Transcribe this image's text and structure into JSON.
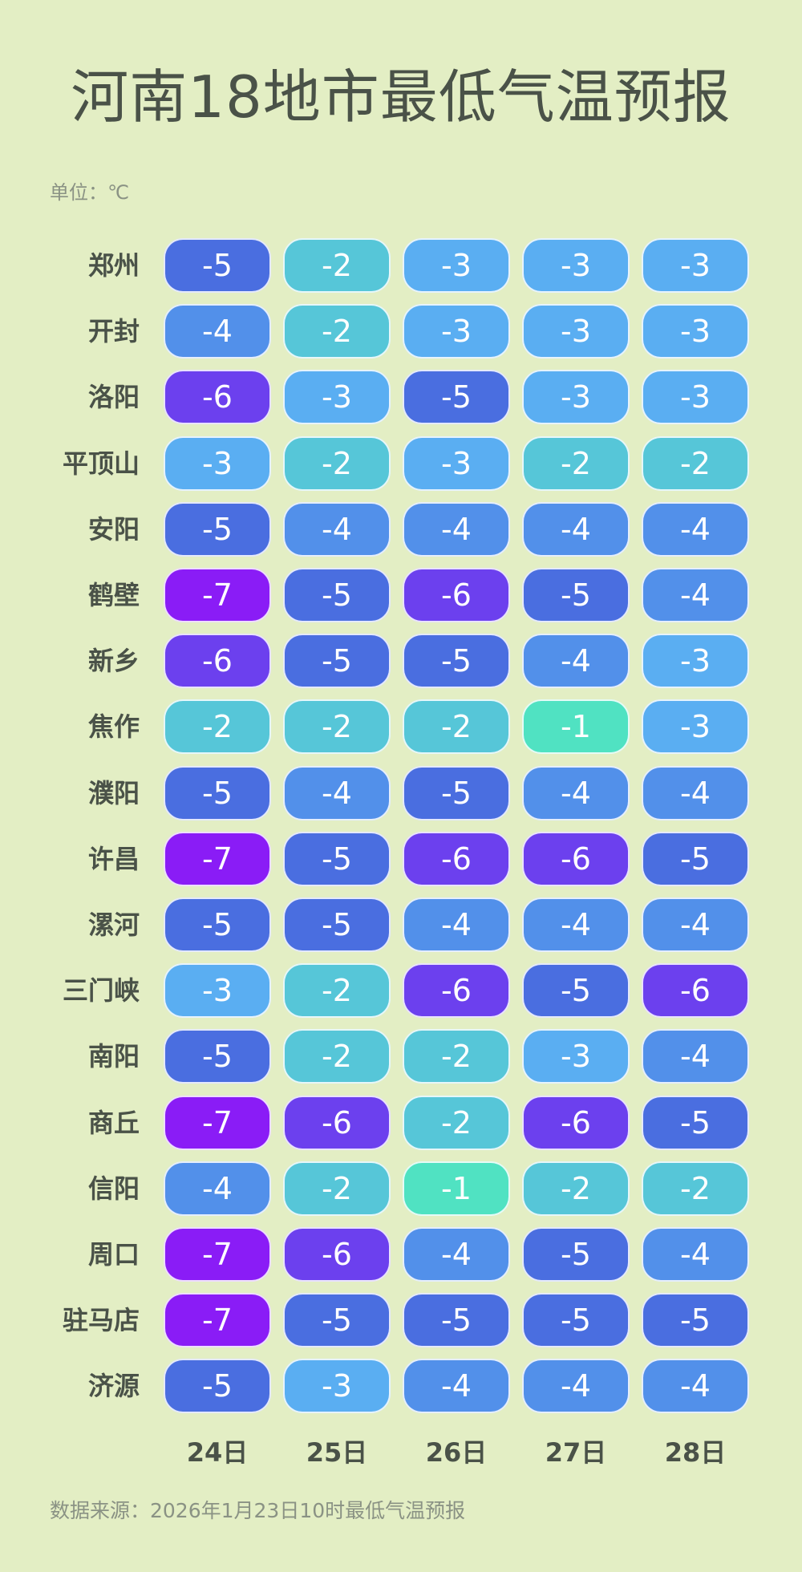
{
  "title": "河南18地市最低气温预报",
  "unit_label": "单位：℃",
  "source_label": "数据来源：2026年1月23日10时最低气温预报",
  "colors": {
    "-7": "#8a1cf6",
    "-6": "#6c40ee",
    "-5": "#4a6ee0",
    "-4": "#5290ea",
    "-3": "#5aaef2",
    "-2": "#56c6d8",
    "-1": "#50e2c2",
    "background": "#e3eec4"
  },
  "chart_data": {
    "type": "heatmap",
    "title": "河南18地市最低气温预报",
    "unit": "℃",
    "columns": [
      "24日",
      "25日",
      "26日",
      "27日",
      "28日"
    ],
    "rows": [
      {
        "city": "郑州",
        "values": [
          -5,
          -2,
          -3,
          -3,
          -3
        ]
      },
      {
        "city": "开封",
        "values": [
          -4,
          -2,
          -3,
          -3,
          -3
        ]
      },
      {
        "city": "洛阳",
        "values": [
          -6,
          -3,
          -5,
          -3,
          -3
        ]
      },
      {
        "city": "平顶山",
        "values": [
          -3,
          -2,
          -3,
          -2,
          -2
        ]
      },
      {
        "city": "安阳",
        "values": [
          -5,
          -4,
          -4,
          -4,
          -4
        ]
      },
      {
        "city": "鹤壁",
        "values": [
          -7,
          -5,
          -6,
          -5,
          -4
        ]
      },
      {
        "city": "新乡",
        "values": [
          -6,
          -5,
          -5,
          -4,
          -3
        ]
      },
      {
        "city": "焦作",
        "values": [
          -2,
          -2,
          -2,
          -1,
          -3
        ]
      },
      {
        "city": "濮阳",
        "values": [
          -5,
          -4,
          -5,
          -4,
          -4
        ]
      },
      {
        "city": "许昌",
        "values": [
          -7,
          -5,
          -6,
          -6,
          -5
        ]
      },
      {
        "city": "漯河",
        "values": [
          -5,
          -5,
          -4,
          -4,
          -4
        ]
      },
      {
        "city": "三门峡",
        "values": [
          -3,
          -2,
          -6,
          -5,
          -6
        ]
      },
      {
        "city": "南阳",
        "values": [
          -5,
          -2,
          -2,
          -3,
          -4
        ]
      },
      {
        "city": "商丘",
        "values": [
          -7,
          -6,
          -2,
          -6,
          -5
        ]
      },
      {
        "city": "信阳",
        "values": [
          -4,
          -2,
          -1,
          -2,
          -2
        ]
      },
      {
        "city": "周口",
        "values": [
          -7,
          -6,
          -4,
          -5,
          -4
        ]
      },
      {
        "city": "驻马店",
        "values": [
          -7,
          -5,
          -5,
          -5,
          -5
        ]
      },
      {
        "city": "济源",
        "values": [
          -5,
          -3,
          -4,
          -4,
          -4
        ]
      }
    ]
  }
}
